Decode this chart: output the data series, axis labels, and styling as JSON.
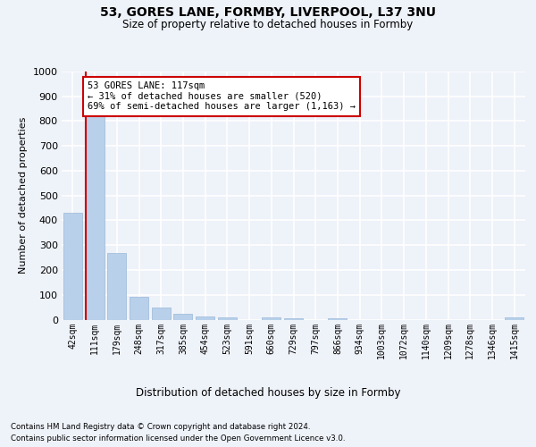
{
  "title_line1": "53, GORES LANE, FORMBY, LIVERPOOL, L37 3NU",
  "title_line2": "Size of property relative to detached houses in Formby",
  "xlabel": "Distribution of detached houses by size in Formby",
  "ylabel": "Number of detached properties",
  "bar_color": "#b8d0ea",
  "bar_edge_color": "#9ab8d8",
  "marker_line_color": "#cc0000",
  "annotation_text": "53 GORES LANE: 117sqm\n← 31% of detached houses are smaller (520)\n69% of semi-detached houses are larger (1,163) →",
  "annotation_box_color": "#ffffff",
  "annotation_box_edge": "#cc0000",
  "footer_line1": "Contains HM Land Registry data © Crown copyright and database right 2024.",
  "footer_line2": "Contains public sector information licensed under the Open Government Licence v3.0.",
  "categories": [
    "42sqm",
    "111sqm",
    "179sqm",
    "248sqm",
    "317sqm",
    "385sqm",
    "454sqm",
    "523sqm",
    "591sqm",
    "660sqm",
    "729sqm",
    "797sqm",
    "866sqm",
    "934sqm",
    "1003sqm",
    "1072sqm",
    "1140sqm",
    "1209sqm",
    "1278sqm",
    "1346sqm",
    "1415sqm"
  ],
  "values": [
    432,
    820,
    270,
    93,
    48,
    22,
    13,
    9,
    0,
    9,
    7,
    0,
    7,
    0,
    0,
    0,
    0,
    0,
    0,
    0,
    8
  ],
  "ylim": [
    0,
    1000
  ],
  "yticks": [
    0,
    100,
    200,
    300,
    400,
    500,
    600,
    700,
    800,
    900,
    1000
  ],
  "background_color": "#eef2f9",
  "grid_color": "#ffffff"
}
